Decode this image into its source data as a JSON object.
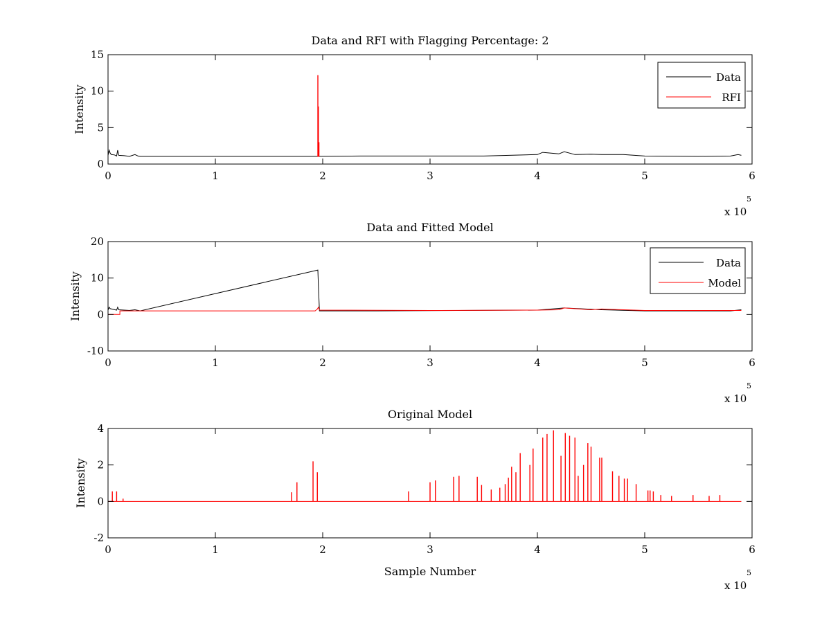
{
  "figure": {
    "background": "#ffffff"
  },
  "chart_data": [
    {
      "type": "line",
      "title": "Data and RFI with Flagging Percentage: 2",
      "xlabel": "",
      "ylabel": "Intensity",
      "xlim": [
        0,
        6
      ],
      "ylim": [
        0,
        15
      ],
      "xticks": [
        "0",
        "1",
        "2",
        "3",
        "4",
        "5",
        "6"
      ],
      "yticks": [
        "0",
        "5",
        "10",
        "15"
      ],
      "x_multiplier": {
        "base": "x 10",
        "exponent": "5"
      },
      "grid": false,
      "legend": {
        "position": "top-right",
        "entries": [
          "Data",
          "RFI"
        ]
      },
      "series": [
        {
          "name": "Data",
          "color": "#000000",
          "baseline": 1.0,
          "points": [
            [
              0.0,
              1.2
            ],
            [
              0.01,
              1.9
            ],
            [
              0.02,
              1.5
            ],
            [
              0.03,
              1.3
            ],
            [
              0.06,
              1.25
            ],
            [
              0.08,
              1.1
            ],
            [
              0.09,
              1.9
            ],
            [
              0.1,
              1.2
            ],
            [
              0.15,
              1.15
            ],
            [
              0.2,
              1.05
            ],
            [
              0.25,
              1.3
            ],
            [
              0.28,
              1.1
            ],
            [
              0.3,
              1.05
            ],
            [
              1.75,
              1.05
            ],
            [
              1.96,
              1.05
            ],
            [
              2.35,
              1.1
            ],
            [
              3.0,
              1.1
            ],
            [
              3.5,
              1.1
            ],
            [
              4.0,
              1.3
            ],
            [
              4.05,
              1.6
            ],
            [
              4.2,
              1.4
            ],
            [
              4.25,
              1.7
            ],
            [
              4.35,
              1.3
            ],
            [
              4.5,
              1.35
            ],
            [
              4.6,
              1.3
            ],
            [
              4.8,
              1.3
            ],
            [
              5.0,
              1.1
            ],
            [
              5.5,
              1.05
            ],
            [
              5.8,
              1.1
            ],
            [
              5.87,
              1.3
            ],
            [
              5.9,
              1.2
            ]
          ]
        },
        {
          "name": "RFI",
          "color": "#ff0000",
          "spikes": [
            [
              1.955,
              12.2
            ],
            [
              1.96,
              7.9
            ],
            [
              1.965,
              3.0
            ]
          ]
        }
      ]
    },
    {
      "type": "line",
      "title": "Data and Fitted Model",
      "xlabel": "",
      "ylabel": "Intensity",
      "xlim": [
        0,
        6
      ],
      "ylim": [
        -10,
        20
      ],
      "xticks": [
        "0",
        "1",
        "2",
        "3",
        "4",
        "5",
        "6"
      ],
      "yticks": [
        "-10",
        "0",
        "10",
        "20"
      ],
      "x_multiplier": {
        "base": "x 10",
        "exponent": "5"
      },
      "grid": false,
      "legend": {
        "position": "top-right",
        "entries": [
          "Data",
          "Model"
        ]
      },
      "series": [
        {
          "name": "Data",
          "color": "#000000",
          "baseline": 1.0,
          "points": [
            [
              0.0,
              1.2
            ],
            [
              0.01,
              2.0
            ],
            [
              0.02,
              1.6
            ],
            [
              0.05,
              1.4
            ],
            [
              0.08,
              1.2
            ],
            [
              0.09,
              2.0
            ],
            [
              0.1,
              1.3
            ],
            [
              0.2,
              1.1
            ],
            [
              0.25,
              1.3
            ],
            [
              0.3,
              1.0
            ],
            [
              1.955,
              12.2
            ],
            [
              1.96,
              7.8
            ],
            [
              1.97,
              1.0
            ],
            [
              2.5,
              1.0
            ],
            [
              4.0,
              1.2
            ],
            [
              4.25,
              1.8
            ],
            [
              4.6,
              1.3
            ],
            [
              5.0,
              1.0
            ],
            [
              5.8,
              1.0
            ],
            [
              5.9,
              1.3
            ]
          ]
        },
        {
          "name": "Model",
          "color": "#ff0000",
          "points": [
            [
              0.0,
              0.0
            ],
            [
              0.11,
              0.0
            ],
            [
              0.11,
              1.0
            ],
            [
              1.93,
              1.0
            ],
            [
              1.95,
              1.5
            ],
            [
              1.96,
              2.0
            ],
            [
              1.97,
              1.2
            ],
            [
              3.0,
              1.1
            ],
            [
              4.0,
              1.2
            ],
            [
              4.2,
              1.3
            ],
            [
              4.25,
              1.8
            ],
            [
              4.5,
              1.3
            ],
            [
              4.6,
              1.5
            ],
            [
              5.0,
              1.1
            ],
            [
              5.9,
              1.1
            ]
          ]
        }
      ]
    },
    {
      "type": "line",
      "title": "Original Model",
      "xlabel": "Sample Number",
      "ylabel": "Intensity",
      "xlim": [
        0,
        6
      ],
      "ylim": [
        -2,
        4
      ],
      "xticks": [
        "0",
        "1",
        "2",
        "3",
        "4",
        "5",
        "6"
      ],
      "yticks": [
        "-2",
        "0",
        "2",
        "4"
      ],
      "x_multiplier": {
        "base": "x 10",
        "exponent": "5"
      },
      "grid": false,
      "legend": null,
      "series": [
        {
          "name": "",
          "color": "#ff0000",
          "baseline": 0.0,
          "range": [
            0.0,
            5.9
          ],
          "spikes": [
            [
              0.04,
              0.55
            ],
            [
              0.08,
              0.55
            ],
            [
              0.14,
              0.15
            ],
            [
              1.71,
              0.5
            ],
            [
              1.76,
              1.05
            ],
            [
              1.91,
              2.2
            ],
            [
              1.95,
              1.6
            ],
            [
              2.8,
              0.55
            ],
            [
              3.0,
              1.05
            ],
            [
              3.05,
              1.15
            ],
            [
              3.22,
              1.35
            ],
            [
              3.27,
              1.4
            ],
            [
              3.44,
              1.35
            ],
            [
              3.48,
              0.9
            ],
            [
              3.57,
              0.65
            ],
            [
              3.65,
              0.75
            ],
            [
              3.7,
              0.95
            ],
            [
              3.73,
              1.3
            ],
            [
              3.76,
              1.9
            ],
            [
              3.8,
              1.6
            ],
            [
              3.84,
              2.65
            ],
            [
              3.93,
              2.0
            ],
            [
              3.96,
              2.9
            ],
            [
              4.05,
              3.5
            ],
            [
              4.09,
              3.7
            ],
            [
              4.15,
              3.9
            ],
            [
              4.22,
              2.5
            ],
            [
              4.26,
              3.75
            ],
            [
              4.3,
              3.6
            ],
            [
              4.35,
              3.5
            ],
            [
              4.38,
              1.4
            ],
            [
              4.43,
              2.0
            ],
            [
              4.47,
              3.2
            ],
            [
              4.5,
              3.0
            ],
            [
              4.58,
              2.4
            ],
            [
              4.6,
              2.4
            ],
            [
              4.7,
              1.65
            ],
            [
              4.76,
              1.4
            ],
            [
              4.81,
              1.25
            ],
            [
              4.84,
              1.25
            ],
            [
              4.92,
              0.95
            ],
            [
              5.03,
              0.6
            ],
            [
              5.05,
              0.6
            ],
            [
              5.08,
              0.55
            ],
            [
              5.15,
              0.35
            ],
            [
              5.25,
              0.3
            ],
            [
              5.45,
              0.35
            ],
            [
              5.6,
              0.3
            ],
            [
              5.7,
              0.35
            ]
          ]
        }
      ]
    }
  ]
}
